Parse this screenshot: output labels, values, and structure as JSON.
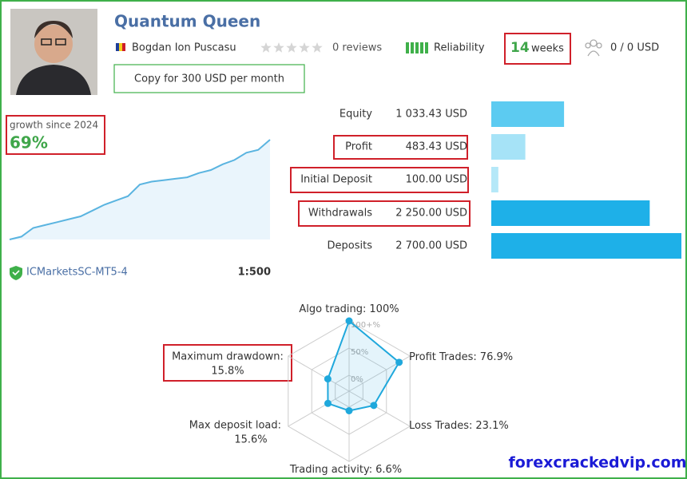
{
  "header": {
    "title": "Quantum Queen",
    "author": "Bogdan Ion Puscasu",
    "reviews": "0 reviews",
    "reliability": "Reliability",
    "age_number": "14",
    "age_unit": "weeks",
    "subscribers": "0 / 0 USD",
    "copy_button": "Copy for 300 USD per month"
  },
  "growth": {
    "label": "growth since 2024",
    "value": "69%"
  },
  "account": {
    "broker": "ICMarketsSC-MT5-4",
    "leverage": "1:500"
  },
  "watermark": "forexcrackedvip.com",
  "chart_data": [
    {
      "type": "hbar",
      "categories": [
        "Equity",
        "Profit",
        "Initial Deposit",
        "Withdrawals",
        "Deposits"
      ],
      "values": [
        1033.43,
        483.43,
        100,
        2250,
        2700
      ],
      "value_labels": [
        "1 033.43 USD",
        "483.43 USD",
        "100.00 USD",
        "2 250.00 USD",
        "2 700.00 USD"
      ],
      "colors": [
        "#5ccbf1",
        "#a6e3f7",
        "#b5e8f8",
        "#1eb0e8",
        "#1eb0e8"
      ]
    },
    {
      "type": "line",
      "values": [
        0,
        2,
        8,
        10,
        12,
        14,
        16,
        20,
        24,
        27,
        30,
        38,
        40,
        41,
        42,
        43,
        46,
        48,
        52,
        55,
        60,
        62,
        69
      ],
      "color": "#5ab4e0"
    },
    {
      "type": "radar",
      "categories": [
        "Algo trading:",
        "Profit Trades:",
        "Loss Trades:",
        "Trading activity:",
        "Max deposit load:",
        "Maximum drawdown:"
      ],
      "values": [
        100,
        76.9,
        23.1,
        6.6,
        15.6,
        15.8
      ],
      "value_labels": [
        "100%",
        "76.9%",
        "23.1%",
        "6.6%",
        "15.6%",
        "15.8%"
      ],
      "ylim": [
        0,
        100
      ],
      "yticks": [
        {
          "value": 0,
          "label": "0%"
        },
        {
          "value": 50,
          "label": "50%"
        },
        {
          "value": 100,
          "label": "100+%"
        }
      ],
      "color": "#1fa8dc"
    }
  ]
}
